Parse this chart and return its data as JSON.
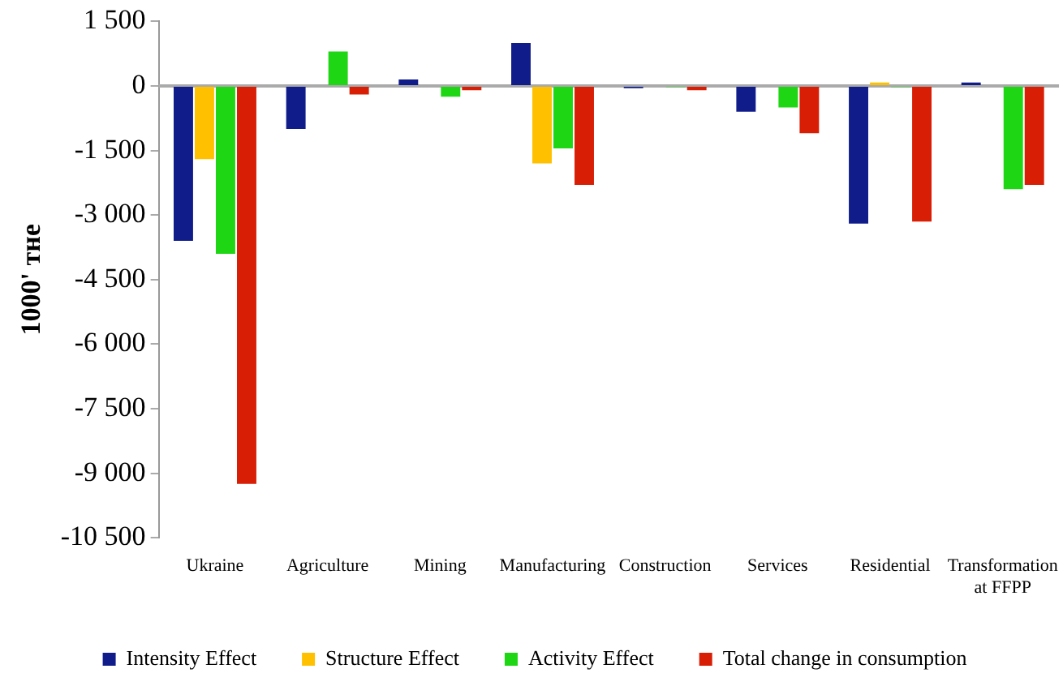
{
  "chart_data": {
    "type": "bar",
    "ylabel": "1000' тне",
    "categories": [
      "Ukraine",
      "Agriculture",
      "Mining",
      "Manufacturing",
      "Construction",
      "Services",
      "Residential",
      "Transformation at FFPP"
    ],
    "series": [
      {
        "name": "Intensity Effect",
        "color": "#101c8a",
        "values": [
          -3600,
          -1000,
          150,
          1000,
          -50,
          -600,
          -3200,
          80
        ]
      },
      {
        "name": "Structure Effect",
        "color": "#ffc000",
        "values": [
          -1700,
          0,
          0,
          -1800,
          0,
          0,
          80,
          0
        ]
      },
      {
        "name": "Activity Effect",
        "color": "#1ed614",
        "values": [
          -3900,
          800,
          -250,
          -1450,
          -30,
          -500,
          -30,
          -2400
        ]
      },
      {
        "name": "Total change in consumption",
        "color": "#d81e05",
        "values": [
          -9250,
          -200,
          -100,
          -2300,
          -100,
          -1100,
          -3150,
          -2300
        ]
      }
    ],
    "ylim": [
      -10500,
      1500
    ],
    "yticks": [
      {
        "value": -10500,
        "label": "-10 500"
      },
      {
        "value": -9000,
        "label": "-9 000"
      },
      {
        "value": -7500,
        "label": "-7 500"
      },
      {
        "value": -6000,
        "label": "-6 000"
      },
      {
        "value": -4500,
        "label": "-4 500"
      },
      {
        "value": -3000,
        "label": "-3 000"
      },
      {
        "value": -1500,
        "label": "-1 500"
      },
      0,
      {
        "value": 1500,
        "label": "1 500"
      }
    ],
    "ref_lines": [
      {
        "axis": "y",
        "value": 0,
        "color": "#aaaaaa"
      }
    ],
    "grid": false,
    "legend": "bottom"
  }
}
